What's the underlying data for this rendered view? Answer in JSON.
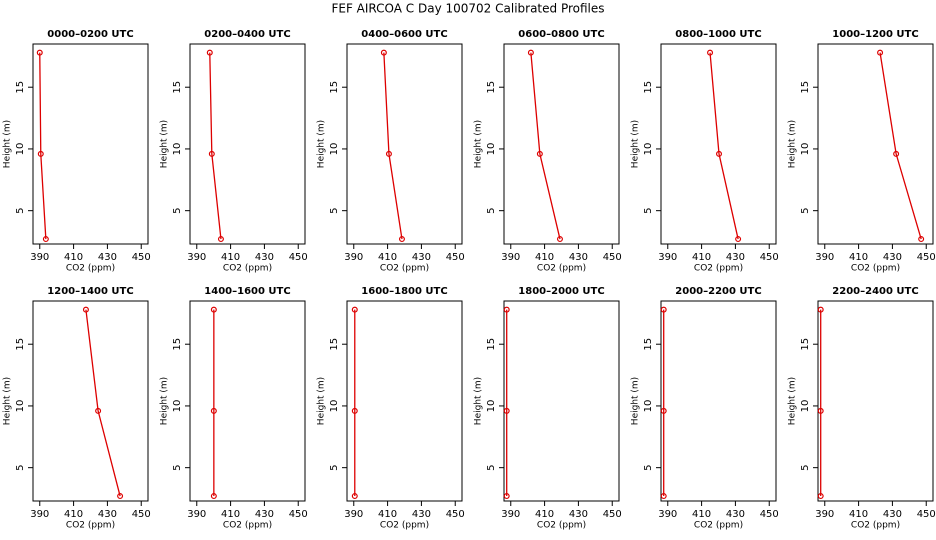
{
  "title": "FEF AIRCOA C  Day 100702  Calibrated Profiles",
  "chart_data": [
    {
      "type": "line",
      "title": "0000–0200 UTC",
      "x_label": "CO2 (ppm)",
      "y_label": "Height (m)",
      "color": "#dd0000",
      "x": [
        390.0,
        390.6,
        393.6
      ],
      "y": [
        17.8,
        9.6,
        2.7
      ],
      "xlim": [
        386,
        454
      ],
      "ylim": [
        2.3,
        18.5
      ],
      "xticks": [
        390,
        410,
        430,
        450
      ],
      "yticks": [
        5,
        10,
        15
      ]
    },
    {
      "type": "line",
      "title": "0200–0400 UTC",
      "x_label": "CO2 (ppm)",
      "y_label": "Height (m)",
      "color": "#dd0000",
      "x": [
        397.7,
        398.9,
        404.3
      ],
      "y": [
        17.8,
        9.6,
        2.7
      ],
      "xlim": [
        386,
        454
      ],
      "ylim": [
        2.3,
        18.5
      ],
      "xticks": [
        390,
        410,
        430,
        450
      ],
      "yticks": [
        5,
        10,
        15
      ]
    },
    {
      "type": "line",
      "title": "0400–0600 UTC",
      "x_label": "CO2 (ppm)",
      "y_label": "Height (m)",
      "color": "#dd0000",
      "x": [
        407.8,
        410.8,
        418.5
      ],
      "y": [
        17.8,
        9.6,
        2.7
      ],
      "xlim": [
        386,
        454
      ],
      "ylim": [
        2.3,
        18.5
      ],
      "xticks": [
        390,
        410,
        430,
        450
      ],
      "yticks": [
        5,
        10,
        15
      ]
    },
    {
      "type": "line",
      "title": "0600–0800 UTC",
      "x_label": "CO2 (ppm)",
      "y_label": "Height (m)",
      "color": "#dd0000",
      "x": [
        401.9,
        407.2,
        419.1
      ],
      "y": [
        17.8,
        9.6,
        2.7
      ],
      "xlim": [
        386,
        454
      ],
      "ylim": [
        2.3,
        18.5
      ],
      "xticks": [
        390,
        410,
        430,
        450
      ],
      "yticks": [
        5,
        10,
        15
      ]
    },
    {
      "type": "line",
      "title": "0800–1000 UTC",
      "x_label": "CO2 (ppm)",
      "y_label": "Height (m)",
      "color": "#dd0000",
      "x": [
        415.0,
        420.3,
        431.6
      ],
      "y": [
        17.8,
        9.6,
        2.7
      ],
      "xlim": [
        386,
        454
      ],
      "ylim": [
        2.3,
        18.5
      ],
      "xticks": [
        390,
        410,
        430,
        450
      ],
      "yticks": [
        5,
        10,
        15
      ]
    },
    {
      "type": "line",
      "title": "1000–1200 UTC",
      "x_label": "CO2 (ppm)",
      "y_label": "Height (m)",
      "color": "#dd0000",
      "x": [
        422.7,
        432.2,
        447.0
      ],
      "y": [
        17.8,
        9.6,
        2.7
      ],
      "xlim": [
        386,
        454
      ],
      "ylim": [
        2.3,
        18.5
      ],
      "xticks": [
        390,
        410,
        430,
        450
      ],
      "yticks": [
        5,
        10,
        15
      ]
    },
    {
      "type": "line",
      "title": "1200–1400 UTC",
      "x_label": "CO2 (ppm)",
      "y_label": "Height (m)",
      "color": "#dd0000",
      "x": [
        417.3,
        424.5,
        437.5
      ],
      "y": [
        17.8,
        9.6,
        2.7
      ],
      "xlim": [
        386,
        454
      ],
      "ylim": [
        2.3,
        18.5
      ],
      "xticks": [
        390,
        410,
        430,
        450
      ],
      "yticks": [
        5,
        10,
        15
      ]
    },
    {
      "type": "line",
      "title": "1400–1600 UTC",
      "x_label": "CO2 (ppm)",
      "y_label": "Height (m)",
      "color": "#dd0000",
      "x": [
        400.1,
        400.1,
        400.1
      ],
      "y": [
        17.8,
        9.6,
        2.7
      ],
      "xlim": [
        386,
        454
      ],
      "ylim": [
        2.3,
        18.5
      ],
      "xticks": [
        390,
        410,
        430,
        450
      ],
      "yticks": [
        5,
        10,
        15
      ]
    },
    {
      "type": "line",
      "title": "1600–1800 UTC",
      "x_label": "CO2 (ppm)",
      "y_label": "Height (m)",
      "color": "#dd0000",
      "x": [
        390.6,
        390.6,
        390.6
      ],
      "y": [
        17.8,
        9.6,
        2.7
      ],
      "xlim": [
        386,
        454
      ],
      "ylim": [
        2.3,
        18.5
      ],
      "xticks": [
        390,
        410,
        430,
        450
      ],
      "yticks": [
        5,
        10,
        15
      ]
    },
    {
      "type": "line",
      "title": "1800–2000 UTC",
      "x_label": "CO2 (ppm)",
      "y_label": "Height (m)",
      "color": "#dd0000",
      "x": [
        387.6,
        387.6,
        387.6
      ],
      "y": [
        17.8,
        9.6,
        2.7
      ],
      "xlim": [
        386,
        454
      ],
      "ylim": [
        2.3,
        18.5
      ],
      "xticks": [
        390,
        410,
        430,
        450
      ],
      "yticks": [
        5,
        10,
        15
      ]
    },
    {
      "type": "line",
      "title": "2000–2200 UTC",
      "x_label": "CO2 (ppm)",
      "y_label": "Height (m)",
      "color": "#dd0000",
      "x": [
        387.6,
        387.6,
        387.6
      ],
      "y": [
        17.8,
        9.6,
        2.7
      ],
      "xlim": [
        386,
        454
      ],
      "ylim": [
        2.3,
        18.5
      ],
      "xticks": [
        390,
        410,
        430,
        450
      ],
      "yticks": [
        5,
        10,
        15
      ]
    },
    {
      "type": "line",
      "title": "2200–2400 UTC",
      "x_label": "CO2 (ppm)",
      "y_label": "Height (m)",
      "color": "#dd0000",
      "x": [
        387.6,
        387.6,
        387.6
      ],
      "y": [
        17.8,
        9.6,
        2.7
      ],
      "xlim": [
        386,
        454
      ],
      "ylim": [
        2.3,
        18.5
      ],
      "xticks": [
        390,
        410,
        430,
        450
      ],
      "yticks": [
        5,
        10,
        15
      ]
    }
  ]
}
